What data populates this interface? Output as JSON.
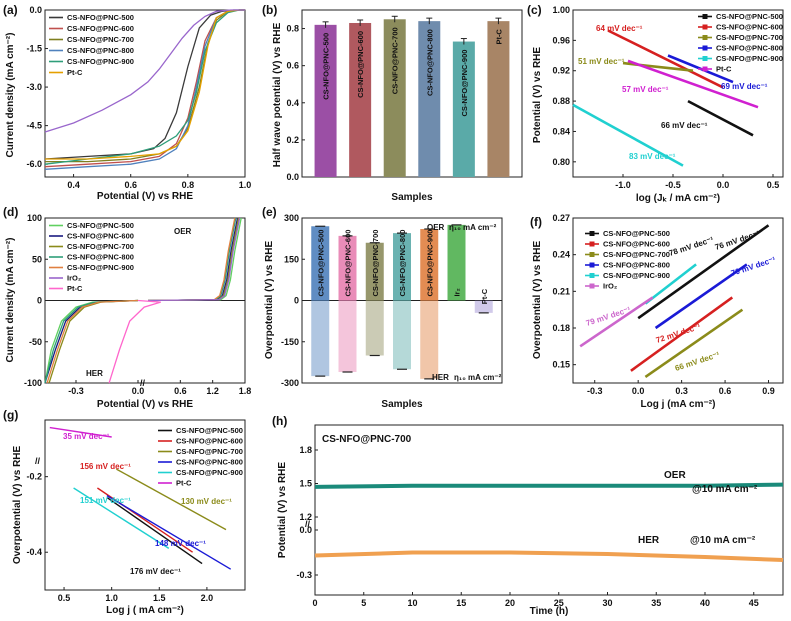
{
  "chart_data": [
    {
      "panel": "(a)",
      "type": "line",
      "xlabel": "Potential (V) vs RHE",
      "ylabel": "Current density (mA cm⁻²)",
      "xlim": [
        0.3,
        1.0
      ],
      "ylim": [
        -6.5,
        0.0
      ],
      "xticks": [
        "0.4",
        "0.6",
        "0.8",
        "1.0"
      ],
      "yticks": [
        "0.0",
        "-1.5",
        "-3.0",
        "-4.5",
        "-6.0"
      ],
      "legend_position": "top-left",
      "series": [
        {
          "name": "CS-NFO@PNC-500",
          "color": "#3a3a3a",
          "x": [
            0.3,
            0.45,
            0.6,
            0.68,
            0.72,
            0.76,
            0.8,
            0.84,
            0.88,
            0.92,
            0.96,
            1.0
          ],
          "y": [
            -5.8,
            -5.7,
            -5.6,
            -5.4,
            -5.0,
            -4.0,
            -2.2,
            -0.7,
            -0.2,
            -0.05,
            0,
            0
          ]
        },
        {
          "name": "CS-NFO@PNC-600",
          "color": "#c0504d",
          "x": [
            0.3,
            0.45,
            0.6,
            0.7,
            0.76,
            0.8,
            0.83,
            0.86,
            0.9,
            0.94,
            0.98,
            1.0
          ],
          "y": [
            -6.1,
            -6.0,
            -5.9,
            -5.7,
            -5.2,
            -4.2,
            -2.8,
            -1.2,
            -0.3,
            -0.05,
            0,
            0
          ]
        },
        {
          "name": "CS-NFO@PNC-700",
          "color": "#7f7f1f",
          "x": [
            0.3,
            0.45,
            0.6,
            0.7,
            0.76,
            0.8,
            0.84,
            0.87,
            0.9,
            0.94,
            0.98,
            1.0
          ],
          "y": [
            -5.9,
            -5.9,
            -5.8,
            -5.6,
            -5.3,
            -4.6,
            -3.0,
            -1.3,
            -0.4,
            -0.05,
            0,
            0
          ]
        },
        {
          "name": "CS-NFO@PNC-800",
          "color": "#4f81bd",
          "x": [
            0.3,
            0.45,
            0.6,
            0.7,
            0.76,
            0.8,
            0.83,
            0.86,
            0.9,
            0.94,
            0.98,
            1.0
          ],
          "y": [
            -6.2,
            -6.1,
            -6.0,
            -5.8,
            -5.4,
            -4.5,
            -3.0,
            -1.4,
            -0.3,
            -0.05,
            0,
            0
          ]
        },
        {
          "name": "CS-NFO@PNC-900",
          "color": "#2e9e7a",
          "x": [
            0.3,
            0.45,
            0.6,
            0.7,
            0.76,
            0.8,
            0.83,
            0.86,
            0.9,
            0.94,
            0.98,
            1.0
          ],
          "y": [
            -6.0,
            -5.8,
            -5.6,
            -5.3,
            -4.9,
            -4.3,
            -3.2,
            -1.6,
            -0.5,
            -0.1,
            0,
            0
          ]
        },
        {
          "name": "Pt-C",
          "color": "#e5a000",
          "x": [
            0.3,
            0.45,
            0.6,
            0.7,
            0.76,
            0.8,
            0.84,
            0.87,
            0.9,
            0.94,
            0.98,
            1.0
          ],
          "y": [
            -5.8,
            -5.8,
            -5.7,
            -5.6,
            -5.3,
            -4.7,
            -3.2,
            -1.4,
            -0.3,
            -0.05,
            0,
            0
          ]
        },
        {
          "name": "",
          "color": "#9966cc",
          "x": [
            0.3,
            0.4,
            0.5,
            0.6,
            0.66,
            0.7,
            0.74,
            0.78,
            0.82,
            0.86,
            0.9,
            0.95,
            1.0
          ],
          "y": [
            -4.75,
            -4.4,
            -3.9,
            -3.3,
            -2.8,
            -2.3,
            -1.7,
            -1.1,
            -0.6,
            -0.25,
            -0.05,
            0,
            0
          ]
        }
      ]
    },
    {
      "panel": "(b)",
      "type": "bar",
      "xlabel": "Samples",
      "ylabel": "Half wave potential (V) vs RHE",
      "ylim": [
        0.0,
        0.9
      ],
      "yticks": [
        "0.0",
        "0.2",
        "0.4",
        "0.6",
        "0.8"
      ],
      "categories": [
        "CS-NFO@PNC-500",
        "CS-NFO@PNC-600",
        "CS-NFO@PNC-700",
        "CS-NFO@PNC-800",
        "CS-NFO@PNC-900",
        "Pt-C"
      ],
      "values": [
        0.82,
        0.83,
        0.85,
        0.84,
        0.73,
        0.84
      ],
      "colors": [
        "#9b4fa5",
        "#b0595f",
        "#8c8c5c",
        "#6f8cad",
        "#5aaaa8",
        "#a88566"
      ]
    },
    {
      "panel": "(c)",
      "type": "line",
      "xlabel": "log (Jₖ / mA cm⁻²)",
      "ylabel": "Potential (V) vs RHE",
      "xlim": [
        -1.5,
        0.6
      ],
      "ylim": [
        0.78,
        1.0
      ],
      "xticks": [
        "-1.0",
        "-0.5",
        "0.0",
        "0.5"
      ],
      "yticks": [
        "1.00",
        "0.96",
        "0.92",
        "0.88",
        "0.84",
        "0.80"
      ],
      "legend_position": "top-right",
      "annotations": [
        "64 mV dec⁻¹",
        "51 mV dec⁻¹",
        "69 mV dec⁻¹",
        "57 mV dec⁻¹",
        "66 mV dec⁻¹",
        "83 mV dec⁻¹"
      ],
      "series": [
        {
          "name": "CS-NFO@PNC-500",
          "color": "#111111",
          "x": [
            -0.35,
            0.3
          ],
          "y": [
            0.88,
            0.835
          ]
        },
        {
          "name": "CS-NFO@PNC-600",
          "color": "#d62020",
          "x": [
            -1.15,
            0.0
          ],
          "y": [
            0.973,
            0.898
          ]
        },
        {
          "name": "CS-NFO@PNC-700",
          "color": "#8b8b1a",
          "x": [
            -1.0,
            -0.3
          ],
          "y": [
            0.93,
            0.92
          ]
        },
        {
          "name": "CS-NFO@PNC-800",
          "color": "#1a1ad6",
          "x": [
            -0.55,
            0.1
          ],
          "y": [
            0.94,
            0.905
          ]
        },
        {
          "name": "CS-NFO@PNC-900",
          "color": "#20d0d0",
          "x": [
            -1.5,
            -0.4
          ],
          "y": [
            0.875,
            0.795
          ]
        },
        {
          "name": "Pt-C",
          "color": "#d020d0",
          "x": [
            -0.95,
            0.35
          ],
          "y": [
            0.933,
            0.872
          ]
        }
      ]
    },
    {
      "panel": "(d)",
      "type": "line",
      "xlabel": "Potential (V) vs RHE",
      "ylabel": "Current density (mA cm⁻²)",
      "ylim": [
        -100,
        100
      ],
      "xticks": [
        "-0.3",
        "0.0",
        "0.6",
        "1.2",
        "1.8"
      ],
      "yticks": [
        "100",
        "50",
        "0",
        "-50",
        "-100"
      ],
      "annotations": [
        "OER",
        "HER"
      ],
      "legend_position": "top-left",
      "series": [
        {
          "name": "CS-NFO@PNC-500",
          "color": "#60d060"
        },
        {
          "name": "CS-NFO@PNC-600",
          "color": "#1a1a80"
        },
        {
          "name": "CS-NFO@PNC-700",
          "color": "#8b8b1a"
        },
        {
          "name": "CS-NFO@PNC-800",
          "color": "#2e9e7a"
        },
        {
          "name": "CS-NFO@PNC-900",
          "color": "#e08040"
        },
        {
          "name": "IrO₂",
          "color": "#9966cc"
        },
        {
          "name": "Pt-C",
          "color": "#ff66cc"
        }
      ]
    },
    {
      "panel": "(e)",
      "type": "bar",
      "xlabel": "Samples",
      "ylabel": "Overpotential (V) vs RHE",
      "ylim": [
        -300,
        300
      ],
      "yticks": [
        "300",
        "150",
        "0",
        "-150",
        "-300"
      ],
      "annotations": [
        "OER",
        "η₁₀ mA cm⁻²",
        "HER",
        "η₁₀ mA cm⁻²"
      ],
      "categories": [
        "CS-NFO@PNC-500",
        "CS-NFO@PNC-600",
        "CS-NFO@PNC-700",
        "CS-NFO@PNC-800",
        "CS-NFO@PNC-900",
        "Ir₂",
        "Pt-C"
      ],
      "series": [
        {
          "name": "OER",
          "values": [
            270,
            235,
            210,
            245,
            260,
            275,
            0
          ]
        },
        {
          "name": "HER",
          "values": [
            -275,
            -260,
            -200,
            -250,
            -285,
            0,
            -45
          ]
        }
      ],
      "colors": [
        "#4f81bd",
        "#e77fb0",
        "#8c8c5c",
        "#5aaaa8",
        "#e08040",
        "#50b050",
        "#9a8ad0"
      ]
    },
    {
      "panel": "(f)",
      "type": "line",
      "xlabel": "Log j (mA cm⁻²)",
      "ylabel": "Overpotential (V) vs RHE",
      "xlim": [
        -0.45,
        1.0
      ],
      "ylim": [
        0.135,
        0.27
      ],
      "xticks": [
        "-0.3",
        "0.0",
        "0.3",
        "0.6",
        "0.9"
      ],
      "yticks": [
        "0.27",
        "0.24",
        "0.21",
        "0.18",
        "0.15"
      ],
      "legend_position": "top-left",
      "annotations": [
        "78 mV dec⁻¹",
        "76 mV dec⁻¹",
        "70 mV dec⁻¹",
        "79 mV dec⁻¹",
        "72 mV dec⁻¹",
        "66 mV dec⁻¹"
      ],
      "series": [
        {
          "name": "CS-NFO@PNC-500",
          "color": "#111111",
          "x": [
            0.0,
            0.9
          ],
          "y": [
            0.188,
            0.264
          ]
        },
        {
          "name": "CS-NFO@PNC-600",
          "color": "#d62020",
          "x": [
            -0.05,
            0.65
          ],
          "y": [
            0.145,
            0.205
          ]
        },
        {
          "name": "CS-NFO@PNC-700",
          "color": "#8b8b1a",
          "x": [
            0.05,
            0.72
          ],
          "y": [
            0.14,
            0.195
          ]
        },
        {
          "name": "CS-NFO@PNC-800",
          "color": "#1a1ad6",
          "x": [
            0.12,
            0.75
          ],
          "y": [
            0.18,
            0.232
          ]
        },
        {
          "name": "CS-NFO@PNC-900",
          "color": "#20d0d0",
          "x": [
            0.05,
            0.4
          ],
          "y": [
            0.2,
            0.232
          ]
        },
        {
          "name": "IrO₂",
          "color": "#cc66cc",
          "x": [
            -0.4,
            0.1
          ],
          "y": [
            0.165,
            0.205
          ]
        }
      ]
    },
    {
      "panel": "(g)",
      "type": "line",
      "xlabel": "Log j ( mA cm⁻²)",
      "ylabel": "Overpotential (V) vs RHE",
      "xlim": [
        0.3,
        2.4
      ],
      "xticks": [
        "0.5",
        "1.0",
        "1.5",
        "2.0"
      ],
      "yticks": [
        "-0.2",
        "-0.4"
      ],
      "legend_position": "top-right",
      "annotations": [
        "35 mV dec⁻¹",
        "156 mV dec⁻¹",
        "130 mV dec⁻¹",
        "151 mV dec⁻¹",
        "148 mV dec⁻¹",
        "176 mV dec⁻¹"
      ],
      "series": [
        {
          "name": "CS-NFO@PNC-500",
          "color": "#111111",
          "x": [
            0.95,
            1.95
          ],
          "y": [
            -0.255,
            -0.43
          ]
        },
        {
          "name": "CS-NFO@PNC-600",
          "color": "#d62020",
          "x": [
            0.85,
            1.85
          ],
          "y": [
            -0.23,
            -0.4
          ]
        },
        {
          "name": "CS-NFO@PNC-700",
          "color": "#8b8b1a",
          "x": [
            1.05,
            2.2
          ],
          "y": [
            -0.18,
            -0.34
          ]
        },
        {
          "name": "CS-NFO@PNC-800",
          "color": "#1a1ad6",
          "x": [
            0.95,
            2.25
          ],
          "y": [
            -0.25,
            -0.445
          ]
        },
        {
          "name": "CS-NFO@PNC-900",
          "color": "#20d0d0",
          "x": [
            0.6,
            1.6
          ],
          "y": [
            -0.23,
            -0.39
          ]
        },
        {
          "name": "Pt-C",
          "color": "#d020d0",
          "x": [
            0.35,
            1.0
          ],
          "y": [
            -0.07,
            -0.095
          ]
        }
      ]
    },
    {
      "panel": "(h)",
      "type": "line",
      "title": "CS-NFO@PNC-700",
      "xlabel": "Time (h)",
      "ylabel": "Potential (V) vs RHE",
      "xlim": [
        0,
        48
      ],
      "xticks": [
        "0",
        "5",
        "10",
        "15",
        "20",
        "25",
        "30",
        "35",
        "40",
        "45"
      ],
      "yticks": [
        "1.8",
        "1.5",
        "1.2",
        "0.0",
        "-0.3"
      ],
      "annotations": [
        "OER",
        "@10 mA cm⁻²",
        "HER",
        "@10 mA cm⁻²"
      ],
      "series": [
        {
          "name": "OER",
          "color": "#1a8a7a",
          "x": [
            0,
            10,
            20,
            30,
            40,
            48
          ],
          "y": [
            1.47,
            1.48,
            1.48,
            1.48,
            1.48,
            1.49
          ]
        },
        {
          "name": "HER",
          "color": "#f0a050",
          "x": [
            0,
            10,
            20,
            30,
            40,
            48
          ],
          "y": [
            -0.17,
            -0.15,
            -0.15,
            -0.16,
            -0.18,
            -0.2
          ]
        }
      ]
    }
  ]
}
